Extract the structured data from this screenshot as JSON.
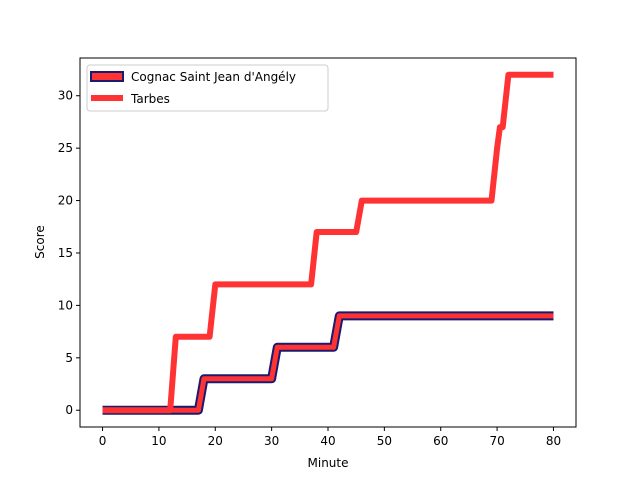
{
  "chart_data": {
    "type": "line",
    "title": "",
    "xlabel": "Minute",
    "ylabel": "Score",
    "xlim": [
      -4,
      84
    ],
    "ylim": [
      -1.6,
      33.6
    ],
    "xticks": [
      0,
      10,
      20,
      30,
      40,
      50,
      60,
      70,
      80
    ],
    "yticks": [
      0,
      5,
      10,
      15,
      20,
      25,
      30
    ],
    "grid": false,
    "legend_position": "top-left",
    "series": [
      {
        "name": "Cognac Saint Jean d'Angély",
        "color": "#ff3333",
        "edge_color": "#1a1a6e",
        "x": [
          0,
          17,
          18,
          30,
          31,
          41,
          42,
          80
        ],
        "y": [
          0,
          0,
          3,
          3,
          6,
          6,
          9,
          9
        ]
      },
      {
        "name": "Tarbes",
        "color": "#ff3333",
        "x": [
          0,
          12,
          13,
          19,
          20,
          37,
          38,
          45,
          46,
          69,
          70,
          70.5,
          71,
          72,
          80
        ],
        "y": [
          0,
          0,
          7,
          7,
          12,
          12,
          17,
          17,
          20,
          20,
          25,
          27,
          27,
          32,
          32
        ]
      }
    ]
  }
}
